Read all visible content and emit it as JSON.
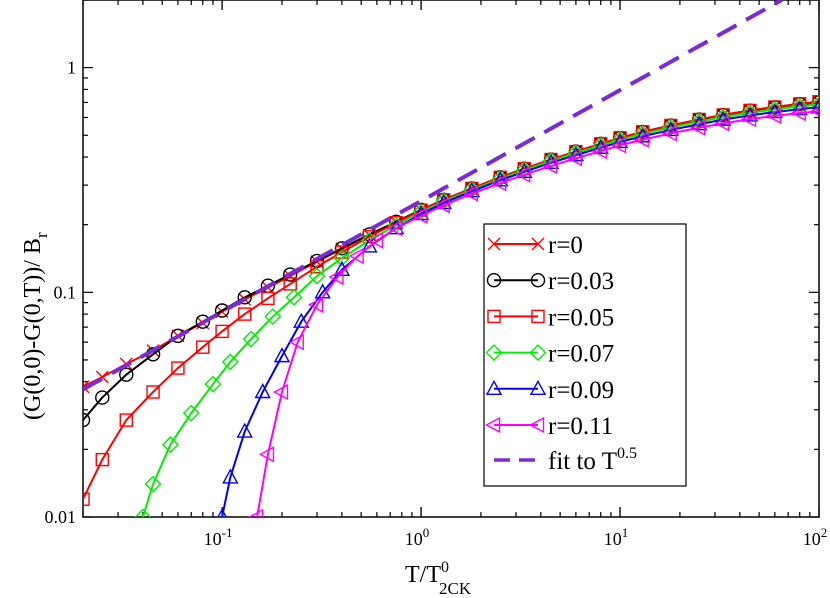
{
  "chart_data": {
    "type": "line",
    "title": "",
    "xlabel": {
      "base": "T/T",
      "sup": "0",
      "sub": "2CK"
    },
    "ylabel": {
      "main": "(G(0,0)-G(0,T))/ B",
      "sub": "r"
    },
    "xscale": "log",
    "yscale": "log",
    "xlim": [
      0.02,
      100
    ],
    "ylim": [
      0.01,
      2
    ],
    "x_ticks": [
      {
        "value": 0.1,
        "base": "10",
        "exp": "-1"
      },
      {
        "value": 1,
        "base": "10",
        "exp": "0"
      },
      {
        "value": 10,
        "base": "10",
        "exp": "1"
      },
      {
        "value": 100,
        "base": "10",
        "exp": "2"
      }
    ],
    "y_ticks": [
      {
        "value": 0.01,
        "label": "0.01"
      },
      {
        "value": 0.1,
        "label": "0.1"
      },
      {
        "value": 1,
        "label": "1"
      }
    ],
    "legend_position": "center-right",
    "series": [
      {
        "name": "r=0",
        "legend": "r=0",
        "color": "#ff0000",
        "marker": "x",
        "x": [
          0.02,
          0.025,
          0.033,
          0.045,
          0.06,
          0.08,
          0.1,
          0.13,
          0.17,
          0.22,
          0.3,
          0.4,
          0.55,
          0.75,
          1,
          1.3,
          1.8,
          2.5,
          3.3,
          4.5,
          6,
          8,
          10,
          13,
          18,
          25,
          33,
          45,
          60,
          80,
          100
        ],
        "y": [
          0.038,
          0.042,
          0.048,
          0.055,
          0.064,
          0.073,
          0.082,
          0.093,
          0.105,
          0.118,
          0.137,
          0.156,
          0.18,
          0.205,
          0.232,
          0.258,
          0.29,
          0.325,
          0.355,
          0.39,
          0.423,
          0.458,
          0.487,
          0.518,
          0.553,
          0.588,
          0.616,
          0.645,
          0.668,
          0.69,
          0.705
        ]
      },
      {
        "name": "r=0.03",
        "legend": "r=0.03",
        "color": "#000000",
        "marker": "circle",
        "x": [
          0.02,
          0.025,
          0.033,
          0.045,
          0.06,
          0.08,
          0.1,
          0.13,
          0.17,
          0.22,
          0.3,
          0.4,
          0.55,
          0.75,
          1,
          1.3,
          1.8,
          2.5,
          3.3,
          4.5,
          6,
          8,
          10,
          13,
          18,
          25,
          33,
          45,
          60,
          80,
          100
        ],
        "y": [
          0.027,
          0.034,
          0.043,
          0.053,
          0.064,
          0.074,
          0.083,
          0.095,
          0.107,
          0.12,
          0.138,
          0.157,
          0.181,
          0.206,
          0.233,
          0.258,
          0.29,
          0.325,
          0.355,
          0.39,
          0.423,
          0.458,
          0.486,
          0.517,
          0.552,
          0.587,
          0.615,
          0.643,
          0.665,
          0.688,
          0.7
        ]
      },
      {
        "name": "r=0.05",
        "legend": "r=0.05",
        "color": "#ff0000",
        "marker": "square",
        "x": [
          0.02,
          0.025,
          0.033,
          0.045,
          0.06,
          0.08,
          0.1,
          0.13,
          0.17,
          0.22,
          0.3,
          0.4,
          0.55,
          0.75,
          1,
          1.3,
          1.8,
          2.5,
          3.3,
          4.5,
          6,
          8,
          10,
          13,
          18,
          25,
          33,
          45,
          60,
          80,
          100
        ],
        "y": [
          0.012,
          0.018,
          0.027,
          0.036,
          0.046,
          0.057,
          0.067,
          0.08,
          0.094,
          0.109,
          0.13,
          0.151,
          0.177,
          0.204,
          0.232,
          0.258,
          0.29,
          0.325,
          0.355,
          0.39,
          0.423,
          0.458,
          0.487,
          0.518,
          0.553,
          0.588,
          0.616,
          0.645,
          0.668,
          0.69,
          0.705
        ]
      },
      {
        "name": "r=0.07",
        "legend": "r=0.07",
        "color": "#00ee00",
        "marker": "diamond",
        "x": [
          0.04,
          0.045,
          0.055,
          0.07,
          0.09,
          0.11,
          0.14,
          0.18,
          0.23,
          0.3,
          0.4,
          0.55,
          0.75,
          1,
          1.3,
          1.8,
          2.5,
          3.3,
          4.5,
          6,
          8,
          10,
          13,
          18,
          25,
          33,
          45,
          60,
          80,
          100
        ],
        "y": [
          0.01,
          0.014,
          0.021,
          0.029,
          0.039,
          0.049,
          0.062,
          0.078,
          0.095,
          0.118,
          0.142,
          0.17,
          0.199,
          0.228,
          0.254,
          0.286,
          0.32,
          0.35,
          0.385,
          0.417,
          0.45,
          0.478,
          0.508,
          0.542,
          0.575,
          0.602,
          0.63,
          0.652,
          0.673,
          0.685
        ]
      },
      {
        "name": "r=0.09",
        "legend": "r=0.09",
        "color": "#0000ee",
        "marker": "triangle-up",
        "x": [
          0.1,
          0.11,
          0.13,
          0.16,
          0.2,
          0.25,
          0.32,
          0.4,
          0.55,
          0.75,
          1,
          1.3,
          1.8,
          2.5,
          3.3,
          4.5,
          6,
          8,
          10,
          13,
          18,
          25,
          33,
          45,
          60,
          80,
          100
        ],
        "y": [
          0.01,
          0.015,
          0.024,
          0.036,
          0.052,
          0.074,
          0.1,
          0.126,
          0.16,
          0.193,
          0.223,
          0.25,
          0.282,
          0.315,
          0.344,
          0.377,
          0.408,
          0.44,
          0.467,
          0.495,
          0.528,
          0.56,
          0.587,
          0.613,
          0.634,
          0.654,
          0.666
        ]
      },
      {
        "name": "r=0.11",
        "legend": "r=0.11",
        "color": "#ff00ff",
        "marker": "triangle-left",
        "x": [
          0.15,
          0.17,
          0.2,
          0.24,
          0.3,
          0.38,
          0.48,
          0.6,
          0.75,
          1,
          1.3,
          1.8,
          2.5,
          3.3,
          4.5,
          6,
          8,
          10,
          13,
          18,
          25,
          33,
          45,
          60,
          80,
          100
        ],
        "y": [
          0.01,
          0.019,
          0.036,
          0.06,
          0.088,
          0.117,
          0.145,
          0.17,
          0.193,
          0.219,
          0.244,
          0.275,
          0.306,
          0.334,
          0.365,
          0.395,
          0.425,
          0.451,
          0.478,
          0.51,
          0.54,
          0.565,
          0.59,
          0.61,
          0.628,
          0.64
        ]
      }
    ],
    "fit": {
      "name": "fit to T^0.5",
      "legend_base": "fit to T",
      "legend_sup": "0.5",
      "color": "#7b2ad6",
      "style": "dashed",
      "x": [
        0.02,
        65
      ],
      "y": [
        0.037,
        2.0
      ]
    }
  }
}
